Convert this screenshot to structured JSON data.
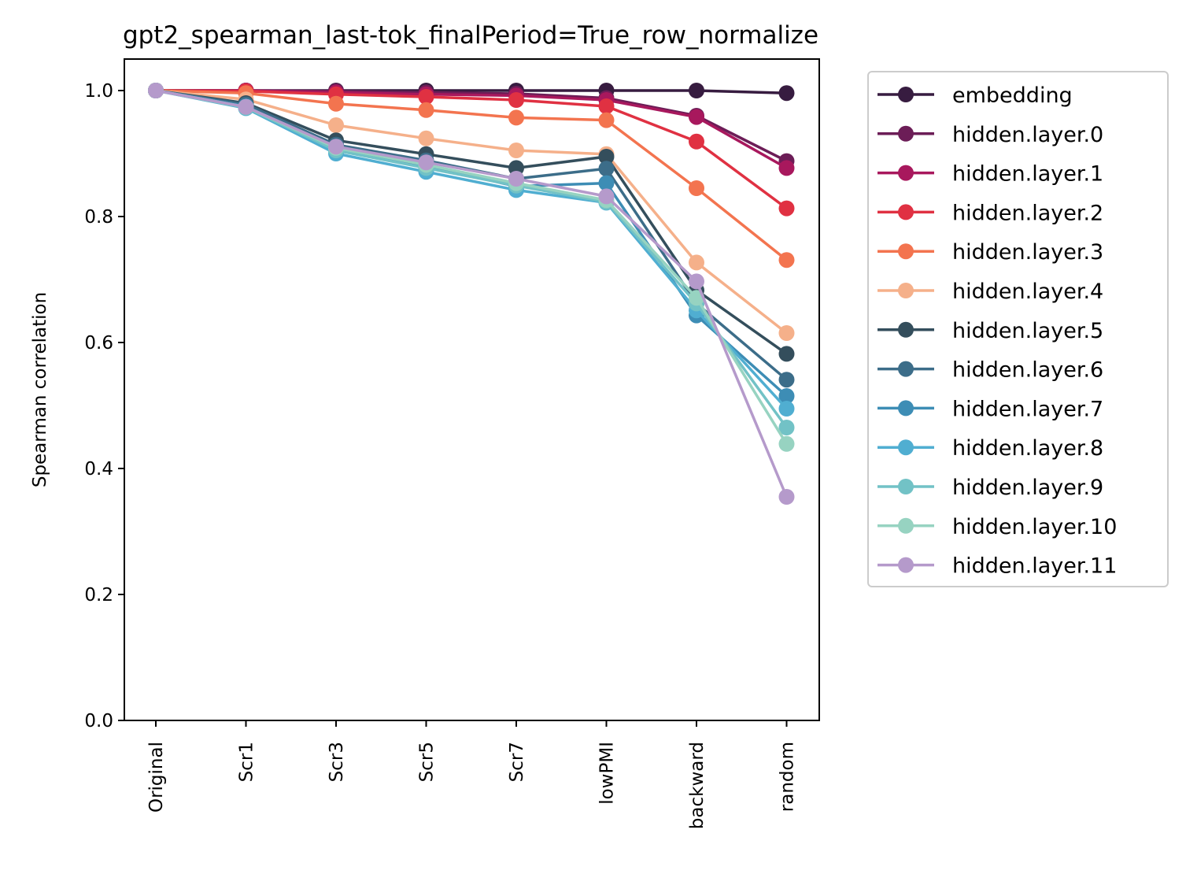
{
  "chart_data": {
    "type": "line",
    "title": "gpt2_spearman_last-tok_finalPeriod=True_row_normalize",
    "xlabel": "",
    "ylabel": "Spearman correlation",
    "ylim": [
      0.0,
      1.05
    ],
    "yticks": [
      "0.0",
      "0.2",
      "0.4",
      "0.6",
      "0.8",
      "1.0"
    ],
    "categories": [
      "Original",
      "Scr1",
      "Scr3",
      "Scr5",
      "Scr7",
      "lowPMI",
      "backward",
      "random"
    ],
    "grid": false,
    "legend_position": "outside-right",
    "series": [
      {
        "name": "embedding",
        "color": "#371c40",
        "values": [
          1.0,
          1.0,
          1.0,
          1.0,
          1.0,
          1.0,
          1.0,
          0.996
        ]
      },
      {
        "name": "hidden.layer.0",
        "color": "#6c1d57",
        "values": [
          1.0,
          1.0,
          0.999,
          0.997,
          0.995,
          0.988,
          0.96,
          0.888
        ]
      },
      {
        "name": "hidden.layer.1",
        "color": "#a8185d",
        "values": [
          1.0,
          1.0,
          0.997,
          0.994,
          0.992,
          0.985,
          0.958,
          0.877
        ]
      },
      {
        "name": "hidden.layer.2",
        "color": "#e03142",
        "values": [
          1.0,
          0.999,
          0.994,
          0.99,
          0.985,
          0.975,
          0.919,
          0.813
        ]
      },
      {
        "name": "hidden.layer.3",
        "color": "#f3744f",
        "values": [
          1.0,
          0.996,
          0.979,
          0.969,
          0.957,
          0.953,
          0.845,
          0.731
        ]
      },
      {
        "name": "hidden.layer.4",
        "color": "#f5b08a",
        "values": [
          1.0,
          0.986,
          0.945,
          0.924,
          0.905,
          0.899,
          0.727,
          0.615
        ]
      },
      {
        "name": "hidden.layer.5",
        "color": "#344e5c",
        "values": [
          1.0,
          0.98,
          0.921,
          0.899,
          0.877,
          0.895,
          0.683,
          0.582
        ]
      },
      {
        "name": "hidden.layer.6",
        "color": "#3c6d89",
        "values": [
          1.0,
          0.978,
          0.914,
          0.889,
          0.86,
          0.876,
          0.662,
          0.541
        ]
      },
      {
        "name": "hidden.layer.7",
        "color": "#3d8db5",
        "values": [
          1.0,
          0.975,
          0.906,
          0.88,
          0.848,
          0.853,
          0.643,
          0.515
        ]
      },
      {
        "name": "hidden.layer.8",
        "color": "#50aed1",
        "values": [
          1.0,
          0.972,
          0.9,
          0.871,
          0.842,
          0.822,
          0.651,
          0.495
        ]
      },
      {
        "name": "hidden.layer.9",
        "color": "#72c2c6",
        "values": [
          1.0,
          0.973,
          0.905,
          0.877,
          0.849,
          0.823,
          0.662,
          0.465
        ]
      },
      {
        "name": "hidden.layer.10",
        "color": "#97d3c1",
        "values": [
          1.0,
          0.974,
          0.909,
          0.882,
          0.853,
          0.826,
          0.671,
          0.439
        ]
      },
      {
        "name": "hidden.layer.11",
        "color": "#b59acb",
        "values": [
          1.0,
          0.974,
          0.911,
          0.886,
          0.86,
          0.832,
          0.697,
          0.355
        ]
      }
    ]
  }
}
